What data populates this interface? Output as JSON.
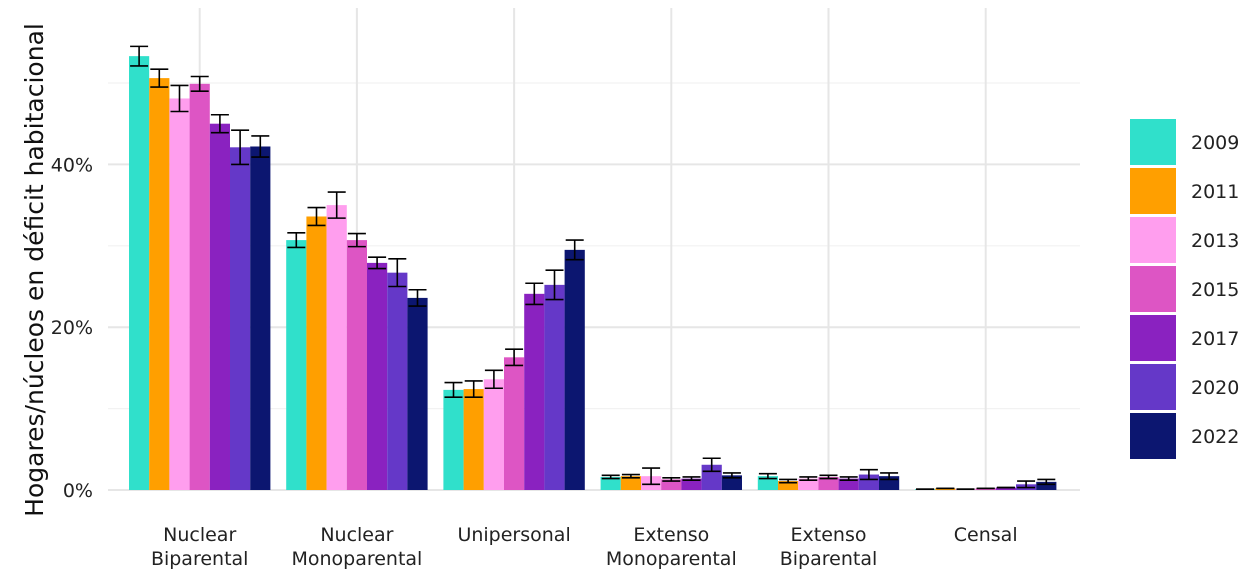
{
  "chart_data": {
    "type": "bar",
    "ylabel": "Hogares/núcleos en déficit habitacional",
    "xlabel": "",
    "title": "",
    "ylim": [
      0,
      0.54
    ],
    "yticks": [
      0,
      0.2,
      0.4
    ],
    "ytick_labels": [
      "0%",
      "20%",
      "40%"
    ],
    "grid": true,
    "legend_position": "right",
    "categories": [
      [
        "Nuclear",
        "Biparental"
      ],
      [
        "Nuclear",
        "Monoparental"
      ],
      [
        "Unipersonal"
      ],
      [
        "Extenso",
        "Monoparental"
      ],
      [
        "Extenso",
        "Biparental"
      ],
      [
        "Censal"
      ]
    ],
    "series": [
      {
        "name": "2009",
        "color": "#30E0CB",
        "values": [
          0.533,
          0.307,
          0.123,
          0.016,
          0.017,
          0.001
        ],
        "err": [
          0.012,
          0.009,
          0.009,
          0.002,
          0.003,
          0.0
        ]
      },
      {
        "name": "2011",
        "color": "#FF9F00",
        "values": [
          0.506,
          0.336,
          0.124,
          0.017,
          0.011,
          0.002
        ],
        "err": [
          0.011,
          0.011,
          0.01,
          0.002,
          0.002,
          0.0
        ]
      },
      {
        "name": "2013",
        "color": "#FF9EEE",
        "values": [
          0.481,
          0.35,
          0.136,
          0.017,
          0.014,
          0.001
        ],
        "err": [
          0.016,
          0.016,
          0.011,
          0.01,
          0.002,
          0.0
        ]
      },
      {
        "name": "2015",
        "color": "#DD55C4",
        "values": [
          0.499,
          0.307,
          0.163,
          0.013,
          0.016,
          0.002
        ],
        "err": [
          0.009,
          0.008,
          0.01,
          0.002,
          0.002,
          0.0
        ]
      },
      {
        "name": "2017",
        "color": "#8A22C0",
        "values": [
          0.45,
          0.279,
          0.241,
          0.014,
          0.014,
          0.003
        ],
        "err": [
          0.011,
          0.007,
          0.013,
          0.002,
          0.002,
          0.0
        ]
      },
      {
        "name": "2020",
        "color": "#6538C8",
        "values": [
          0.421,
          0.267,
          0.252,
          0.031,
          0.019,
          0.007
        ],
        "err": [
          0.021,
          0.017,
          0.018,
          0.008,
          0.006,
          0.004
        ]
      },
      {
        "name": "2022",
        "color": "#0C1670",
        "values": [
          0.422,
          0.236,
          0.295,
          0.018,
          0.017,
          0.01
        ],
        "err": [
          0.013,
          0.01,
          0.012,
          0.003,
          0.004,
          0.003
        ]
      }
    ]
  }
}
